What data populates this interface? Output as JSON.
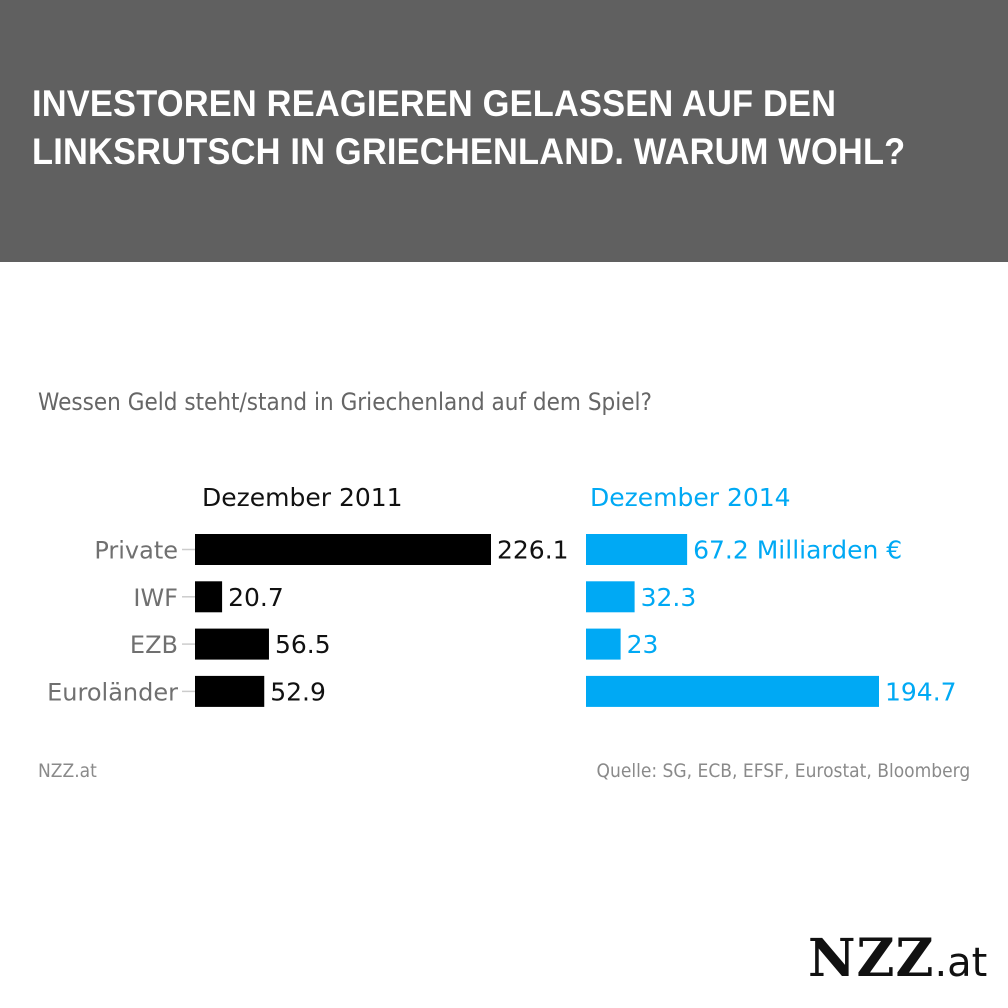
{
  "header": {
    "headline_line1": "INVESTOREN REAGIEREN GELASSEN AUF DEN",
    "headline_line2": "LINKSRUTSCH IN GRIECHENLAND. WARUM WOHL?",
    "background_color": "#606060"
  },
  "subtitle": "Wessen Geld steht/stand in Griechenland auf dem Spiel?",
  "chart_data": {
    "type": "bar",
    "orientation": "horizontal",
    "title": "Wessen Geld steht/stand in Griechenland auf dem Spiel?",
    "unit": "Milliarden €",
    "categories": [
      "Private",
      "IWF",
      "EZB",
      "Euroländer"
    ],
    "series": [
      {
        "name": "Dezember 2011",
        "color": "#000000",
        "label_color": "#111111",
        "values": [
          226.1,
          20.7,
          56.5,
          52.9
        ],
        "labels": [
          "226.1",
          "20.7",
          "56.5",
          "52.9"
        ]
      },
      {
        "name": "Dezember 2014",
        "color": "#00a9f4",
        "label_color": "#00a9f4",
        "values": [
          67.2,
          32.3,
          23,
          194.7
        ],
        "labels": [
          "67.2 Milliarden €",
          "32.3",
          "23",
          "194.7"
        ]
      }
    ],
    "xlabel": "",
    "ylabel": "",
    "grid": false,
    "legend": "panel titles above each panel"
  },
  "footer": {
    "credit": "NZZ.at",
    "source": "Quelle: SG, ECB, EFSF, Eurostat, Bloomberg"
  },
  "logo": {
    "main": "NZZ",
    "suffix": ".at"
  }
}
